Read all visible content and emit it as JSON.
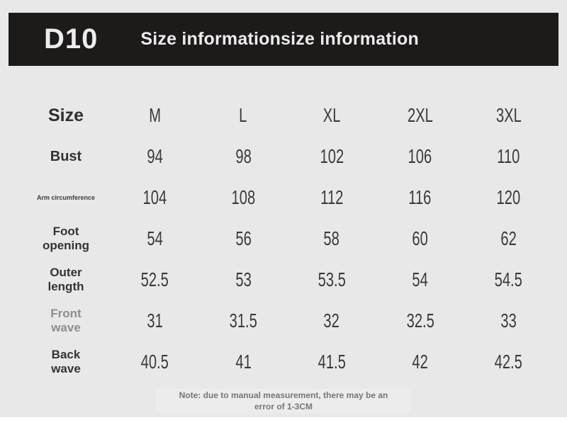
{
  "header": {
    "badge": "D10",
    "title": "Size informationsize information"
  },
  "chart_data": {
    "type": "table",
    "title": "Size informationsize information",
    "columns": [
      "Size",
      "M",
      "L",
      "XL",
      "2XL",
      "3XL"
    ],
    "rows": [
      {
        "label": "Bust",
        "values": [
          "94",
          "98",
          "102",
          "106",
          "110"
        ]
      },
      {
        "label": "Arm circumference",
        "values": [
          "104",
          "108",
          "112",
          "116",
          "120"
        ]
      },
      {
        "label": "Foot opening",
        "values": [
          "54",
          "56",
          "58",
          "60",
          "62"
        ]
      },
      {
        "label": "Outer length",
        "values": [
          "52.5",
          "53",
          "53.5",
          "54",
          "54.5"
        ]
      },
      {
        "label": "Front wave",
        "values": [
          "31",
          "31.5",
          "32",
          "32.5",
          "33"
        ]
      },
      {
        "label": "Back wave",
        "values": [
          "40.5",
          "41",
          "41.5",
          "42",
          "42.5"
        ]
      }
    ]
  },
  "note": {
    "line1": "Note: due to manual measurement, there may be an",
    "line2": "error of 1-3CM"
  },
  "colors": {
    "background": "#e9e8e8",
    "header_bar": "#1d1a1a",
    "header_text": "#edecec",
    "label": "#333333",
    "muted_label": "#8e8e8e",
    "value": "#3a3a3a",
    "note": "#767676"
  }
}
